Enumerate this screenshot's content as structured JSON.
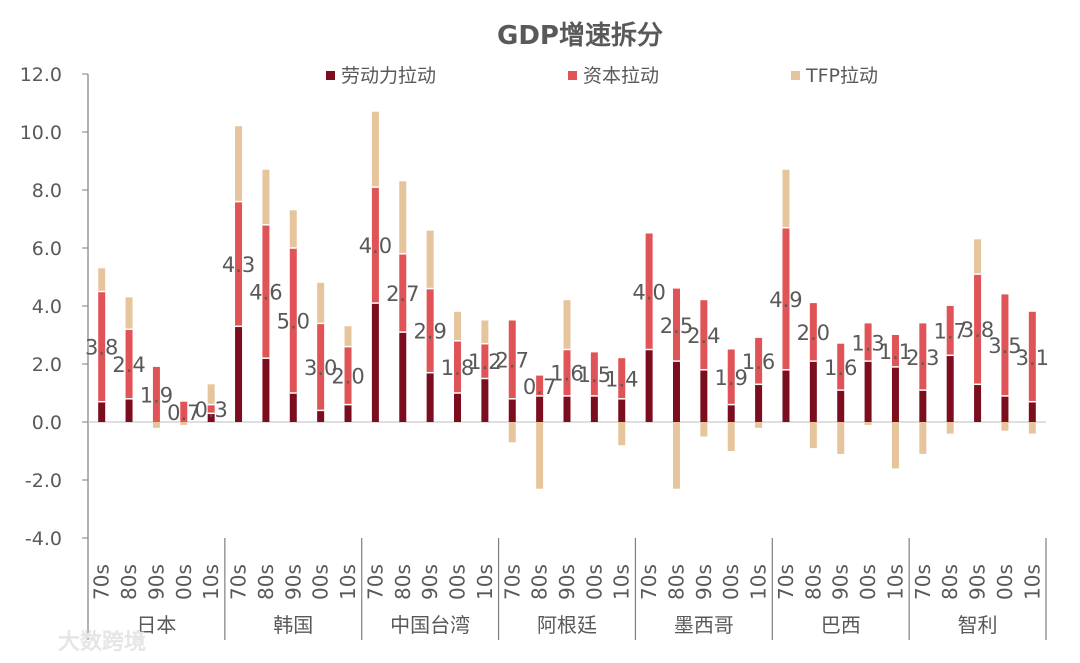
{
  "watermark": "大数跨境",
  "chart_data": {
    "type": "bar",
    "stacked": true,
    "title": "GDP增速拆分",
    "ylim": [
      -4,
      12
    ],
    "yticks": [
      "12.0",
      "10.0",
      "8.0",
      "6.0",
      "4.0",
      "2.0",
      "0.0",
      "-2.0",
      "-4.0"
    ],
    "legend": {
      "position": "top-center",
      "labels": [
        "劳动力拉动",
        "资本拉动",
        "TFP拉动"
      ]
    },
    "colors": {
      "labor": "#7b0d1e",
      "capital": "#e05356",
      "tfp": "#e6c59c"
    },
    "groups": [
      {
        "name": "日本",
        "periods": [
          "70s",
          "80s",
          "90s",
          "00s",
          "10s"
        ],
        "labor": [
          0.7,
          0.8,
          0.0,
          0.0,
          0.3
        ],
        "capital": [
          3.8,
          2.4,
          1.9,
          0.7,
          0.3
        ],
        "tfp": [
          0.8,
          1.1,
          -0.2,
          -0.1,
          0.7
        ],
        "labels": [
          "3.8",
          "2.4",
          "1.9",
          "0.7",
          "0.3"
        ]
      },
      {
        "name": "韩国",
        "periods": [
          "70s",
          "80s",
          "90s",
          "00s",
          "10s"
        ],
        "labor": [
          3.3,
          2.2,
          1.0,
          0.4,
          0.6
        ],
        "capital": [
          4.3,
          4.6,
          5.0,
          3.0,
          2.0
        ],
        "tfp": [
          2.6,
          1.9,
          1.3,
          1.4,
          0.7
        ],
        "labels": [
          "4.3",
          "4.6",
          "5.0",
          "3.0",
          "2.0"
        ]
      },
      {
        "name": "中国台湾",
        "periods": [
          "70s",
          "80s",
          "90s",
          "00s",
          "10s"
        ],
        "labor": [
          4.1,
          3.1,
          1.7,
          1.0,
          1.5
        ],
        "capital": [
          4.0,
          2.7,
          2.9,
          1.8,
          1.2
        ],
        "tfp": [
          2.6,
          2.5,
          2.0,
          1.0,
          0.8
        ],
        "labels": [
          "4.0",
          "2.7",
          "2.9",
          "1.8",
          "1.2"
        ]
      },
      {
        "name": "阿根廷",
        "periods": [
          "70s",
          "80s",
          "90s",
          "00s",
          "10s"
        ],
        "labor": [
          0.8,
          0.9,
          0.9,
          0.9,
          0.8
        ],
        "capital": [
          2.7,
          0.7,
          1.6,
          1.5,
          1.4
        ],
        "tfp": [
          -0.7,
          -2.3,
          1.7,
          0.0,
          -0.8
        ],
        "labels": [
          "2.7",
          "0.7",
          "1.6",
          "1.5",
          "1.4"
        ]
      },
      {
        "name": "墨西哥",
        "periods": [
          "70s",
          "80s",
          "90s",
          "00s",
          "10s"
        ],
        "labor": [
          2.5,
          2.1,
          1.8,
          0.6,
          1.3
        ],
        "capital": [
          4.0,
          2.5,
          2.4,
          1.9,
          1.6
        ],
        "tfp": [
          0.0,
          -2.3,
          -0.5,
          -1.0,
          -0.2
        ],
        "labels": [
          "4.0",
          "2.5",
          "2.4",
          "1.9",
          "1.6"
        ]
      },
      {
        "name": "巴西",
        "periods": [
          "70s",
          "80s",
          "90s",
          "00s",
          "10s"
        ],
        "labor": [
          1.8,
          2.1,
          1.1,
          2.1,
          1.9
        ],
        "capital": [
          4.9,
          2.0,
          1.6,
          1.3,
          1.1
        ],
        "tfp": [
          2.0,
          -0.9,
          -1.1,
          -0.1,
          -1.6
        ],
        "labels": [
          "4.9",
          "2.0",
          "1.6",
          "1.3",
          "1.1"
        ]
      },
      {
        "name": "智利",
        "periods": [
          "70s",
          "80s",
          "90s",
          "00s",
          "10s"
        ],
        "labor": [
          1.1,
          2.3,
          1.3,
          0.9,
          0.7
        ],
        "capital": [
          2.3,
          1.7,
          3.8,
          3.5,
          3.1
        ],
        "tfp": [
          -1.1,
          -0.4,
          1.2,
          -0.3,
          -0.4
        ],
        "labels": [
          "2.3",
          "1.7",
          "3.8",
          "3.5",
          "3.1"
        ]
      }
    ]
  }
}
